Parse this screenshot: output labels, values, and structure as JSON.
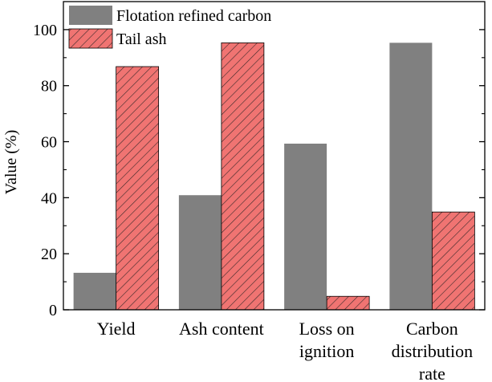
{
  "chart_data": {
    "type": "bar",
    "categories": [
      [
        "Yield"
      ],
      [
        "Ash content"
      ],
      [
        "Loss on",
        "ignition"
      ],
      [
        "Carbon",
        "distribution",
        "rate"
      ]
    ],
    "series": [
      {
        "name": "Flotation refined carbon",
        "values": [
          13.2,
          40.9,
          59.3,
          95.3
        ],
        "color": "#808080",
        "pattern": "solid"
      },
      {
        "name": "Tail ash",
        "values": [
          86.8,
          95.3,
          4.8,
          34.9
        ],
        "color": "#f07472",
        "pattern": "hatch"
      }
    ],
    "ylabel": "Value (%)",
    "xlabel": "",
    "ylim": [
      0,
      110
    ],
    "yticks": [
      0,
      20,
      40,
      60,
      80,
      100
    ],
    "grid": false,
    "legend_position": "top-left"
  }
}
